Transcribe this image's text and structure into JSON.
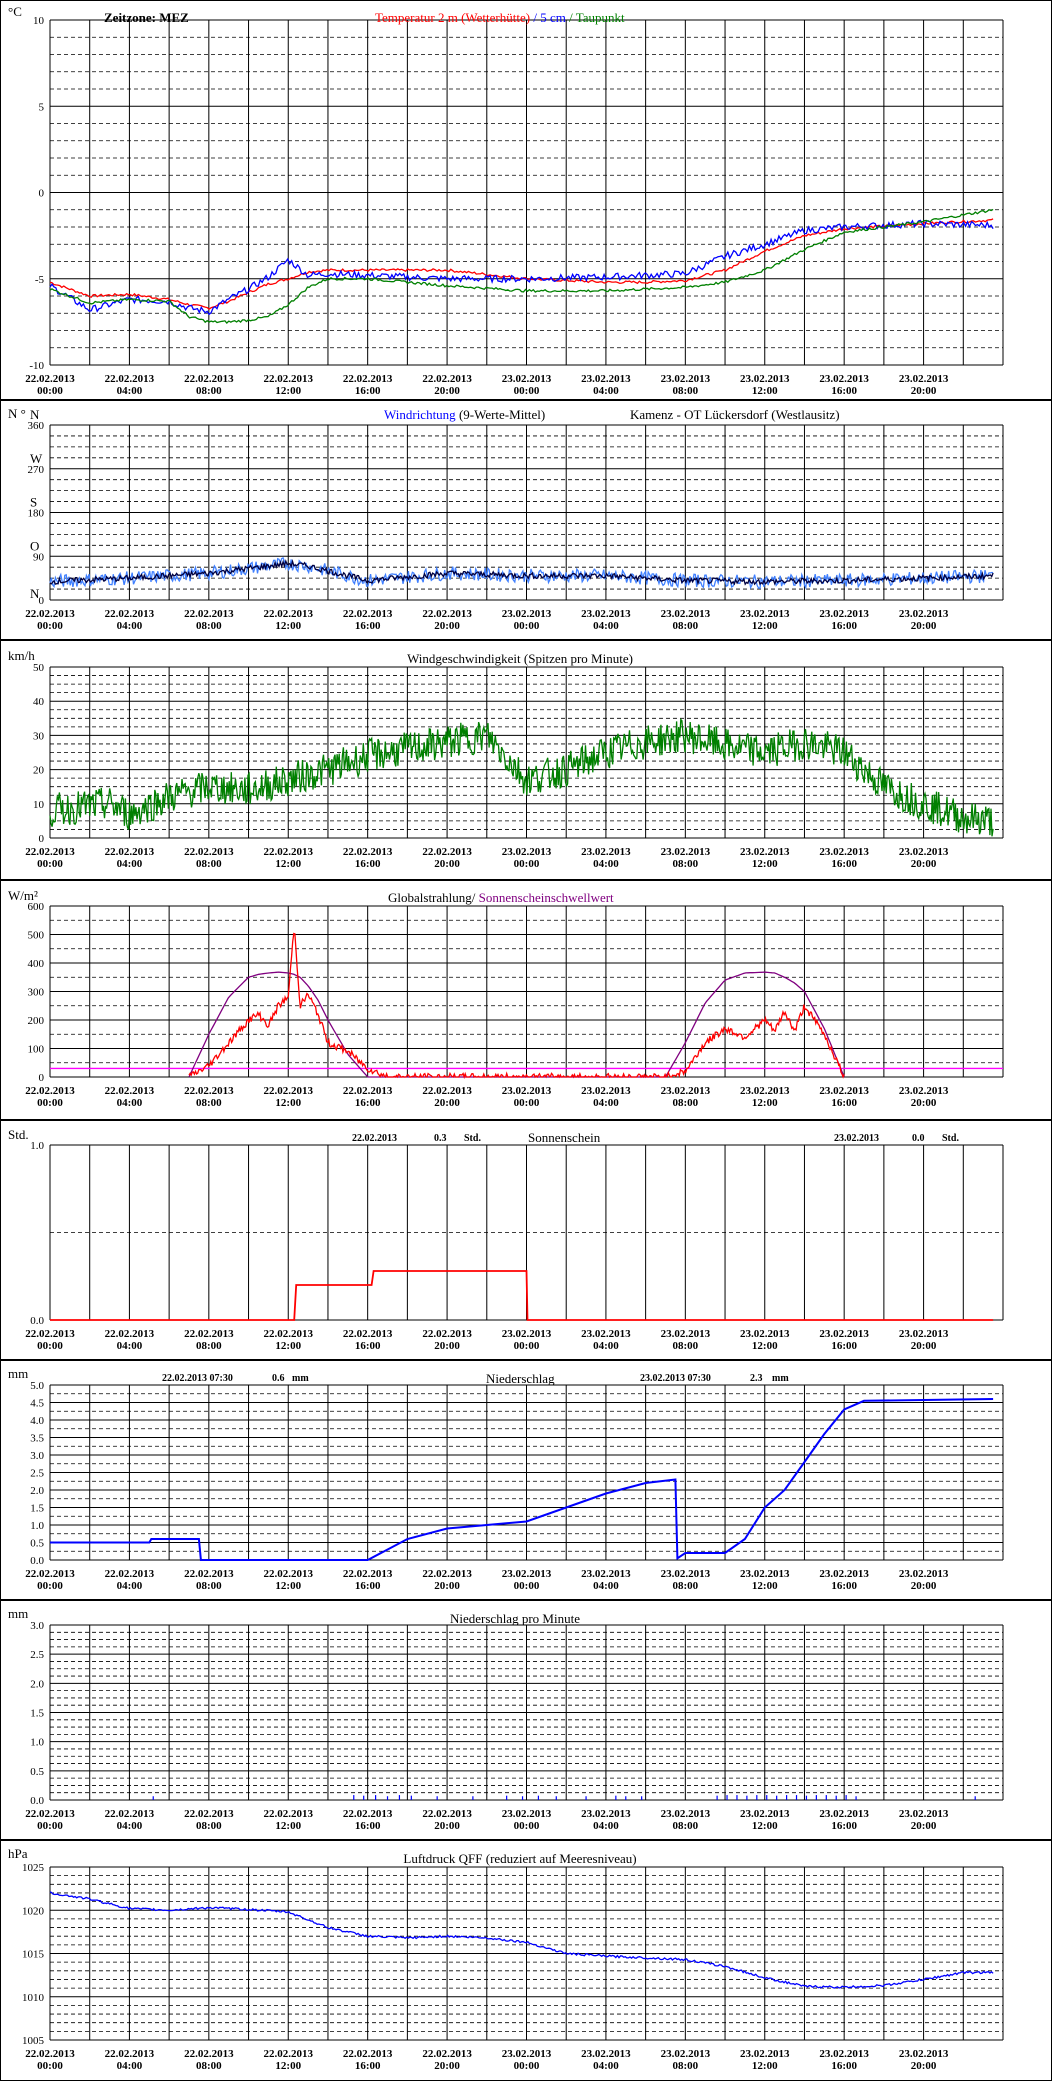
{
  "x_axis": {
    "ticks": [
      {
        "date": "22.02.2013",
        "time": "00:00"
      },
      {
        "date": "22.02.2013",
        "time": "04:00"
      },
      {
        "date": "22.02.2013",
        "time": "08:00"
      },
      {
        "date": "22.02.2013",
        "time": "12:00"
      },
      {
        "date": "22.02.2013",
        "time": "16:00"
      },
      {
        "date": "22.02.2013",
        "time": "20:00"
      },
      {
        "date": "23.02.2013",
        "time": "00:00"
      },
      {
        "date": "23.02.2013",
        "time": "04:00"
      },
      {
        "date": "23.02.2013",
        "time": "08:00"
      },
      {
        "date": "23.02.2013",
        "time": "12:00"
      },
      {
        "date": "23.02.2013",
        "time": "16:00"
      },
      {
        "date": "23.02.2013",
        "time": "20:00"
      }
    ]
  },
  "colors": {
    "red": "#ff0000",
    "blue": "#0000ff",
    "green": "#008000",
    "purple": "#800080",
    "magenta": "#ff00ff",
    "navy": "#000040"
  },
  "chart_data": [
    {
      "id": "temperature",
      "type": "line",
      "unit": "°C",
      "zeitzone": "Zeitzone: MEZ",
      "title_parts": [
        "Temperatur 2 m (Wetterhütte)",
        " / ",
        "5 cm",
        " / ",
        "Taupunkt"
      ],
      "ylim": [
        -10,
        10
      ],
      "y_ticks": [
        "10",
        "5",
        "0",
        "-5",
        "-10"
      ],
      "x_hours": [
        0,
        2,
        4,
        6,
        7,
        8,
        9,
        10,
        11,
        12,
        13,
        14,
        16,
        20,
        24,
        28,
        30,
        32,
        34,
        36,
        38,
        40,
        44,
        47.5
      ],
      "series": [
        {
          "name": "Temperatur 2 m (Wetterhütte)",
          "color": "#ff0000",
          "values": [
            -5.2,
            -6.0,
            -5.9,
            -6.2,
            -6.5,
            -6.7,
            -6.3,
            -5.8,
            -5.3,
            -5.0,
            -4.6,
            -4.5,
            -4.5,
            -4.5,
            -5.0,
            -5.2,
            -5.2,
            -5.1,
            -4.5,
            -3.4,
            -2.5,
            -2.1,
            -1.8,
            -1.6
          ]
        },
        {
          "name": "5 cm",
          "color": "#0000ff",
          "values": [
            -5.4,
            -6.8,
            -6.2,
            -6.3,
            -6.7,
            -6.9,
            -6.2,
            -5.6,
            -4.9,
            -3.9,
            -4.8,
            -4.7,
            -4.8,
            -5.0,
            -5.0,
            -4.9,
            -4.8,
            -4.7,
            -3.7,
            -3.0,
            -2.2,
            -2.0,
            -1.8,
            -1.9
          ]
        },
        {
          "name": "Taupunkt",
          "color": "#008000",
          "values": [
            -5.6,
            -6.4,
            -6.2,
            -6.3,
            -7.2,
            -7.5,
            -7.5,
            -7.4,
            -7.2,
            -6.5,
            -5.5,
            -5.0,
            -5.0,
            -5.4,
            -5.7,
            -5.7,
            -5.6,
            -5.5,
            -5.2,
            -4.5,
            -3.3,
            -2.3,
            -1.7,
            -1.0
          ]
        }
      ]
    },
    {
      "id": "wind-direction",
      "type": "line",
      "unit": "N °",
      "title_parts": [
        "Windrichtung",
        " (9-Werte-Mittel)"
      ],
      "station": "Kamenz - OT Lückersdorf (Westlausitz)",
      "ylim": [
        0,
        360
      ],
      "y_ticks": [
        "360",
        "270",
        "180",
        "90",
        "0"
      ],
      "compass": [
        "N",
        "W",
        "S",
        "O",
        "N"
      ],
      "x_hours": [
        0,
        4,
        8,
        10,
        12,
        13,
        16,
        20,
        24,
        28,
        32,
        36,
        40,
        44,
        47.5
      ],
      "series": [
        {
          "name": "Windrichtung",
          "color": "#000040",
          "values": [
            38,
            45,
            55,
            65,
            75,
            70,
            40,
            55,
            50,
            50,
            40,
            38,
            40,
            45,
            50
          ]
        }
      ]
    },
    {
      "id": "wind-speed",
      "type": "line",
      "unit": "km/h",
      "title": "Windgeschwindigkeit (Spitzen pro Minute)",
      "ylim": [
        0,
        50
      ],
      "y_ticks": [
        "50",
        "40",
        "30",
        "20",
        "10",
        "0"
      ],
      "x_hours": [
        0,
        3,
        4,
        6,
        8,
        10,
        12,
        14,
        16,
        18,
        20,
        22,
        24,
        26,
        28,
        30,
        32,
        34,
        36,
        38,
        40,
        42,
        44,
        46,
        47.5
      ],
      "series": [
        {
          "name": "Windgeschwindigkeit",
          "color": "#008000",
          "values": [
            8,
            10,
            7,
            12,
            15,
            14,
            17,
            20,
            24,
            26,
            28,
            30,
            17,
            20,
            25,
            28,
            30,
            27,
            25,
            28,
            25,
            15,
            10,
            6,
            5
          ]
        }
      ]
    },
    {
      "id": "radiation",
      "type": "line",
      "unit": "W/m²",
      "title_parts": [
        "Globalstrahlung/",
        " Sonnenscheinschwellwert"
      ],
      "ylim": [
        0,
        600
      ],
      "y_ticks": [
        "600",
        "500",
        "400",
        "300",
        "200",
        "100",
        "0"
      ],
      "x_hours": [
        7,
        8,
        9,
        10,
        10.5,
        11,
        11.5,
        12,
        12.3,
        12.6,
        13,
        13.5,
        14,
        15,
        16,
        17,
        31,
        32,
        33,
        34,
        35,
        36,
        36.5,
        37,
        37.5,
        38,
        39,
        40
      ],
      "series": [
        {
          "name": "Globalstrahlung",
          "color": "#ff0000",
          "values": [
            0,
            40,
            120,
            200,
            220,
            180,
            250,
            280,
            530,
            250,
            290,
            220,
            120,
            90,
            30,
            0,
            0,
            20,
            120,
            170,
            140,
            200,
            160,
            230,
            160,
            250,
            150,
            0
          ]
        },
        {
          "name": "Sonnenscheinschwellwert",
          "color": "#800080",
          "values": [
            0,
            150,
            280,
            350,
            360,
            365,
            368,
            365,
            360,
            350,
            320,
            270,
            200,
            80,
            0,
            0,
            0,
            120,
            260,
            340,
            365,
            368,
            365,
            350,
            330,
            300,
            170,
            0
          ]
        }
      ],
      "baseline": {
        "color": "#ff00ff",
        "value": 30
      }
    },
    {
      "id": "sunshine",
      "type": "line",
      "unit": "Std.",
      "title": "Sonnenschein",
      "summary": [
        {
          "date": "22.02.2013",
          "value": "0.3",
          "unit": "Std."
        },
        {
          "date": "23.02.2013",
          "value": "0.0",
          "unit": "Std."
        }
      ],
      "ylim": [
        0,
        1
      ],
      "y_ticks": [
        "1.0",
        "0.0"
      ],
      "x_hours": [
        0,
        12.3,
        12.4,
        16.2,
        16.3,
        24,
        24.05,
        47.5
      ],
      "series": [
        {
          "name": "Sonnenschein",
          "color": "#ff0000",
          "values": [
            0,
            0,
            0.2,
            0.2,
            0.28,
            0.28,
            0,
            0
          ]
        }
      ]
    },
    {
      "id": "precipitation",
      "type": "line",
      "unit": "mm",
      "title": "Niederschlag",
      "summary": [
        {
          "date": "22.02.2013 07:30",
          "value": "0.6",
          "unit": "mm"
        },
        {
          "date": "23.02.2013 07:30",
          "value": "2.3",
          "unit": "mm"
        }
      ],
      "ylim": [
        0,
        5
      ],
      "y_ticks": [
        "5.0",
        "4.5",
        "4.0",
        "3.5",
        "3.0",
        "2.5",
        "2.0",
        "1.5",
        "1.0",
        "0.5",
        "0.0"
      ],
      "x_hours": [
        0,
        5,
        5.1,
        7.5,
        7.6,
        16,
        18,
        20,
        22,
        24,
        26,
        28,
        30,
        31.5,
        31.6,
        32,
        34,
        35,
        36,
        37,
        38,
        39,
        40,
        41,
        47.5
      ],
      "series": [
        {
          "name": "Niederschlag",
          "color": "#0000ff",
          "values": [
            0.5,
            0.5,
            0.6,
            0.6,
            0,
            0,
            0.6,
            0.9,
            1.0,
            1.1,
            1.5,
            1.9,
            2.2,
            2.3,
            0.05,
            0.2,
            0.2,
            0.6,
            1.5,
            2.0,
            2.8,
            3.6,
            4.3,
            4.55,
            4.6
          ]
        }
      ]
    },
    {
      "id": "precipitation-per-minute",
      "type": "bar",
      "unit": "mm",
      "title": "Niederschlag pro Minute",
      "ylim": [
        0,
        3
      ],
      "y_ticks": [
        "3.0",
        "2.5",
        "2.0",
        "1.5",
        "1.0",
        "0.5",
        "0.0"
      ],
      "x_hours": [
        5.2,
        15.3,
        15.8,
        16.4,
        17.0,
        17.6,
        18.2,
        19.5,
        21.3,
        23.0,
        23.8,
        24.6,
        25.5,
        27.0,
        28.5,
        29.0,
        29.8,
        33.6,
        34.1,
        34.6,
        35.1,
        35.6,
        36.1,
        36.6,
        37.1,
        37.6,
        38.1,
        38.6,
        39.1,
        39.6,
        40.1,
        40.6,
        46.6
      ],
      "values": [
        0.03,
        0.05,
        0.04,
        0.05,
        0.03,
        0.05,
        0.04,
        0.03,
        0.03,
        0.04,
        0.03,
        0.04,
        0.03,
        0.03,
        0.04,
        0.03,
        0.03,
        0.04,
        0.05,
        0.05,
        0.04,
        0.05,
        0.05,
        0.04,
        0.05,
        0.05,
        0.04,
        0.05,
        0.05,
        0.04,
        0.05,
        0.03,
        0.03
      ],
      "color": "#0000ff"
    },
    {
      "id": "pressure",
      "type": "line",
      "unit": "hPa",
      "title": "Luftdruck QFF (reduziert auf Meeresniveau)",
      "ylim": [
        1005,
        1025
      ],
      "y_ticks": [
        "1025",
        "1020",
        "1015",
        "1010",
        "1005"
      ],
      "x_hours": [
        0,
        2,
        4,
        6,
        8,
        10,
        12,
        14,
        16,
        18,
        20,
        22,
        24,
        26,
        28,
        30,
        32,
        34,
        36,
        38,
        40,
        42,
        44,
        46,
        47.5
      ],
      "series": [
        {
          "name": "Luftdruck QFF",
          "color": "#0000ff",
          "values": [
            1022,
            1021.3,
            1020.2,
            1020,
            1020.3,
            1020.1,
            1019.8,
            1018,
            1017,
            1016.8,
            1017,
            1016.8,
            1016.3,
            1015,
            1014.7,
            1014.5,
            1014.3,
            1013.5,
            1012.2,
            1011.2,
            1011.1,
            1011.3,
            1012,
            1012.8,
            1012.8
          ]
        }
      ]
    }
  ]
}
